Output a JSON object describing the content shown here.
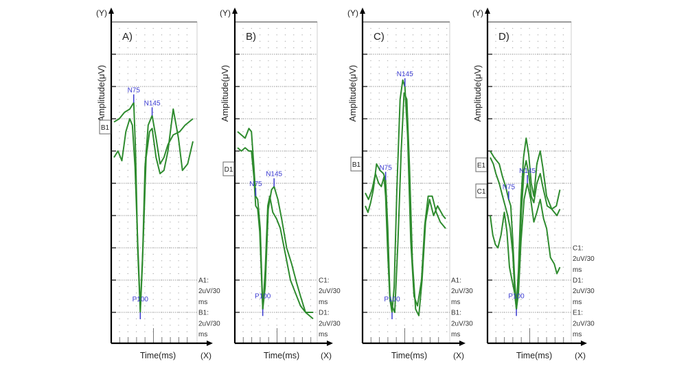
{
  "chart_data": {
    "type": "line",
    "title": "",
    "common": {
      "xlabel": "Time(ms)",
      "ylabel": "Amplitude(μV)",
      "x_axis_tag": "(X)",
      "y_axis_tag": "(Y)",
      "grid": true,
      "x_range_ms": [
        0,
        300
      ],
      "y_divisions": 10,
      "trace_color": "#2e8b2e",
      "marker_color": "#3a3ad0"
    },
    "panels": [
      {
        "id": "A",
        "panel_label": "A)",
        "channel_tags": [
          "B1"
        ],
        "scale_notes": [
          "A1:",
          "2uV/30",
          "ms",
          "B1:",
          "2uV/30",
          "ms"
        ],
        "peaks": [
          {
            "label": "N75",
            "latency_ms": 75
          },
          {
            "label": "P100",
            "latency_ms": 100
          },
          {
            "label": "N145",
            "latency_ms": 145
          }
        ],
        "series": [
          {
            "name": "A1",
            "points": [
              [
                0,
                6.9
              ],
              [
                20,
                7.0
              ],
              [
                40,
                7.2
              ],
              [
                60,
                7.3
              ],
              [
                75,
                7.5
              ],
              [
                82,
                6.0
              ],
              [
                90,
                3.0
              ],
              [
                100,
                1.0
              ],
              [
                108,
                2.5
              ],
              [
                118,
                5.5
              ],
              [
                130,
                6.8
              ],
              [
                145,
                7.1
              ],
              [
                160,
                6.4
              ],
              [
                175,
                5.6
              ],
              [
                190,
                5.8
              ],
              [
                205,
                6.2
              ],
              [
                225,
                6.5
              ],
              [
                250,
                6.6
              ],
              [
                270,
                6.8
              ],
              [
                300,
                7.0
              ]
            ]
          },
          {
            "name": "B1",
            "points": [
              [
                0,
                5.8
              ],
              [
                15,
                6.0
              ],
              [
                30,
                5.7
              ],
              [
                45,
                6.6
              ],
              [
                60,
                7.0
              ],
              [
                70,
                6.8
              ],
              [
                80,
                5.5
              ],
              [
                90,
                3.2
              ],
              [
                100,
                1.1
              ],
              [
                110,
                3.0
              ],
              [
                122,
                5.8
              ],
              [
                135,
                6.6
              ],
              [
                145,
                6.7
              ],
              [
                160,
                5.8
              ],
              [
                175,
                5.3
              ],
              [
                190,
                5.4
              ],
              [
                205,
                6.0
              ],
              [
                225,
                7.3
              ],
              [
                245,
                6.4
              ],
              [
                260,
                5.4
              ],
              [
                280,
                5.6
              ],
              [
                300,
                6.3
              ]
            ]
          }
        ]
      },
      {
        "id": "B",
        "panel_label": "B)",
        "channel_tags": [
          "D1"
        ],
        "scale_notes": [
          "C1:",
          "2uV/30",
          "ms",
          "D1:",
          "2uV/30",
          "ms"
        ],
        "peaks": [
          {
            "label": "N75",
            "latency_ms": 75
          },
          {
            "label": "P100",
            "latency_ms": 100
          },
          {
            "label": "N145",
            "latency_ms": 145
          }
        ],
        "series": [
          {
            "name": "C1",
            "points": [
              [
                0,
                6.6
              ],
              [
                15,
                6.5
              ],
              [
                30,
                6.4
              ],
              [
                45,
                6.7
              ],
              [
                55,
                6.6
              ],
              [
                65,
                5.5
              ],
              [
                72,
                4.6
              ],
              [
                80,
                4.5
              ],
              [
                90,
                3.6
              ],
              [
                100,
                1.1
              ],
              [
                110,
                1.8
              ],
              [
                122,
                4.2
              ],
              [
                135,
                4.8
              ],
              [
                145,
                4.9
              ],
              [
                160,
                4.5
              ],
              [
                175,
                3.9
              ],
              [
                195,
                3.0
              ],
              [
                215,
                2.5
              ],
              [
                235,
                1.9
              ],
              [
                250,
                1.5
              ],
              [
                270,
                1.0
              ],
              [
                300,
                0.8
              ]
            ]
          },
          {
            "name": "D1",
            "points": [
              [
                0,
                6.1
              ],
              [
                15,
                6.0
              ],
              [
                30,
                6.1
              ],
              [
                45,
                6.0
              ],
              [
                55,
                6.0
              ],
              [
                65,
                5.2
              ],
              [
                72,
                4.3
              ],
              [
                80,
                4.2
              ],
              [
                88,
                3.5
              ],
              [
                100,
                1.1
              ],
              [
                110,
                2.3
              ],
              [
                120,
                4.3
              ],
              [
                128,
                4.6
              ],
              [
                140,
                4.1
              ],
              [
                155,
                3.9
              ],
              [
                170,
                3.6
              ],
              [
                190,
                2.8
              ],
              [
                210,
                2.0
              ],
              [
                230,
                1.6
              ],
              [
                250,
                1.2
              ],
              [
                270,
                1.0
              ],
              [
                300,
                1.0
              ]
            ]
          }
        ]
      },
      {
        "id": "C",
        "panel_label": "C)",
        "channel_tags": [
          "B1"
        ],
        "scale_notes": [
          "A1:",
          "2uV/30",
          "ms",
          "B1:",
          "2uV/30",
          "ms"
        ],
        "peaks": [
          {
            "label": "N75",
            "latency_ms": 75
          },
          {
            "label": "P100",
            "latency_ms": 100
          },
          {
            "label": "N145",
            "latency_ms": 145
          }
        ],
        "series": [
          {
            "name": "A1",
            "points": [
              [
                0,
                4.7
              ],
              [
                12,
                4.5
              ],
              [
                25,
                4.8
              ],
              [
                38,
                5.3
              ],
              [
                50,
                5.0
              ],
              [
                60,
                4.9
              ],
              [
                70,
                5.2
              ],
              [
                76,
                4.6
              ],
              [
                84,
                2.8
              ],
              [
                92,
                1.4
              ],
              [
                100,
                1.0
              ],
              [
                108,
                1.8
              ],
              [
                118,
                4.8
              ],
              [
                130,
                7.6
              ],
              [
                140,
                8.2
              ],
              [
                148,
                8.0
              ],
              [
                158,
                6.5
              ],
              [
                170,
                3.2
              ],
              [
                182,
                1.5
              ],
              [
                195,
                1.2
              ],
              [
                210,
                2.0
              ],
              [
                222,
                3.7
              ],
              [
                235,
                4.6
              ],
              [
                250,
                4.6
              ],
              [
                265,
                4.1
              ],
              [
                280,
                3.8
              ],
              [
                300,
                3.6
              ]
            ]
          },
          {
            "name": "B1",
            "points": [
              [
                0,
                4.3
              ],
              [
                10,
                4.1
              ],
              [
                20,
                4.4
              ],
              [
                30,
                4.8
              ],
              [
                42,
                5.6
              ],
              [
                55,
                5.4
              ],
              [
                68,
                5.3
              ],
              [
                76,
                5.1
              ],
              [
                84,
                3.6
              ],
              [
                92,
                1.5
              ],
              [
                100,
                1.2
              ],
              [
                110,
                1.0
              ],
              [
                122,
                3.2
              ],
              [
                134,
                6.0
              ],
              [
                145,
                7.8
              ],
              [
                155,
                7.6
              ],
              [
                165,
                5.5
              ],
              [
                176,
                2.6
              ],
              [
                188,
                1.1
              ],
              [
                200,
                0.9
              ],
              [
                212,
                2.0
              ],
              [
                225,
                3.8
              ],
              [
                240,
                4.5
              ],
              [
                255,
                4.0
              ],
              [
                270,
                4.3
              ],
              [
                290,
                4.0
              ],
              [
                300,
                3.9
              ]
            ]
          }
        ]
      },
      {
        "id": "D",
        "panel_label": "D)",
        "channel_tags": [
          "E1",
          "C1"
        ],
        "scale_notes": [
          "C1:",
          "2uV/30",
          "ms",
          "D1:",
          "2uV/30",
          "ms",
          "E1:",
          "2uV/30",
          "ms"
        ],
        "peaks": [
          {
            "label": "N75",
            "latency_ms": 75
          },
          {
            "label": "P100",
            "latency_ms": 100
          },
          {
            "label": "N145",
            "latency_ms": 145
          }
        ],
        "series": [
          {
            "name": "C1",
            "points": [
              [
                0,
                4.0
              ],
              [
                10,
                3.4
              ],
              [
                20,
                3.1
              ],
              [
                30,
                3.0
              ],
              [
                42,
                3.4
              ],
              [
                55,
                4.1
              ],
              [
                65,
                3.5
              ],
              [
                75,
                2.4
              ],
              [
                85,
                2.0
              ],
              [
                95,
                1.6
              ],
              [
                102,
                1.1
              ],
              [
                110,
                1.6
              ],
              [
                120,
                3.2
              ],
              [
                132,
                4.5
              ],
              [
                145,
                5.0
              ],
              [
                158,
                4.5
              ],
              [
                170,
                3.8
              ],
              [
                182,
                4.1
              ],
              [
                195,
                4.5
              ],
              [
                208,
                3.9
              ],
              [
                220,
                3.6
              ],
              [
                235,
                2.7
              ],
              [
                250,
                2.5
              ],
              [
                260,
                2.2
              ],
              [
                272,
                2.4
              ]
            ]
          },
          {
            "name": "D1",
            "points": [
              [
                0,
                6.0
              ],
              [
                15,
                5.8
              ],
              [
                25,
                5.7
              ],
              [
                35,
                5.6
              ],
              [
                48,
                5.2
              ],
              [
                60,
                4.9
              ],
              [
                72,
                4.5
              ],
              [
                80,
                4.3
              ],
              [
                88,
                3.2
              ],
              [
                96,
                1.9
              ],
              [
                102,
                1.2
              ],
              [
                110,
                2.3
              ],
              [
                120,
                4.5
              ],
              [
                130,
                5.8
              ],
              [
                140,
                6.4
              ],
              [
                150,
                5.9
              ],
              [
                160,
                5.0
              ],
              [
                170,
                4.6
              ],
              [
                182,
                5.6
              ],
              [
                195,
                6.0
              ],
              [
                205,
                5.5
              ],
              [
                220,
                4.6
              ],
              [
                240,
                4.2
              ],
              [
                260,
                4.0
              ],
              [
                272,
                4.2
              ]
            ]
          },
          {
            "name": "E1",
            "points": [
              [
                0,
                5.8
              ],
              [
                12,
                5.6
              ],
              [
                22,
                5.3
              ],
              [
                35,
                5.0
              ],
              [
                48,
                4.6
              ],
              [
                58,
                4.3
              ],
              [
                68,
                4.0
              ],
              [
                78,
                3.6
              ],
              [
                88,
                2.8
              ],
              [
                96,
                1.6
              ],
              [
                102,
                1.1
              ],
              [
                112,
                2.4
              ],
              [
                122,
                4.2
              ],
              [
                132,
                5.4
              ],
              [
                140,
                5.7
              ],
              [
                150,
                5.3
              ],
              [
                160,
                4.6
              ],
              [
                170,
                4.4
              ],
              [
                182,
                5.0
              ],
              [
                195,
                5.3
              ],
              [
                205,
                4.9
              ],
              [
                222,
                4.3
              ],
              [
                240,
                4.2
              ],
              [
                258,
                4.3
              ],
              [
                272,
                4.8
              ]
            ]
          }
        ]
      }
    ]
  }
}
